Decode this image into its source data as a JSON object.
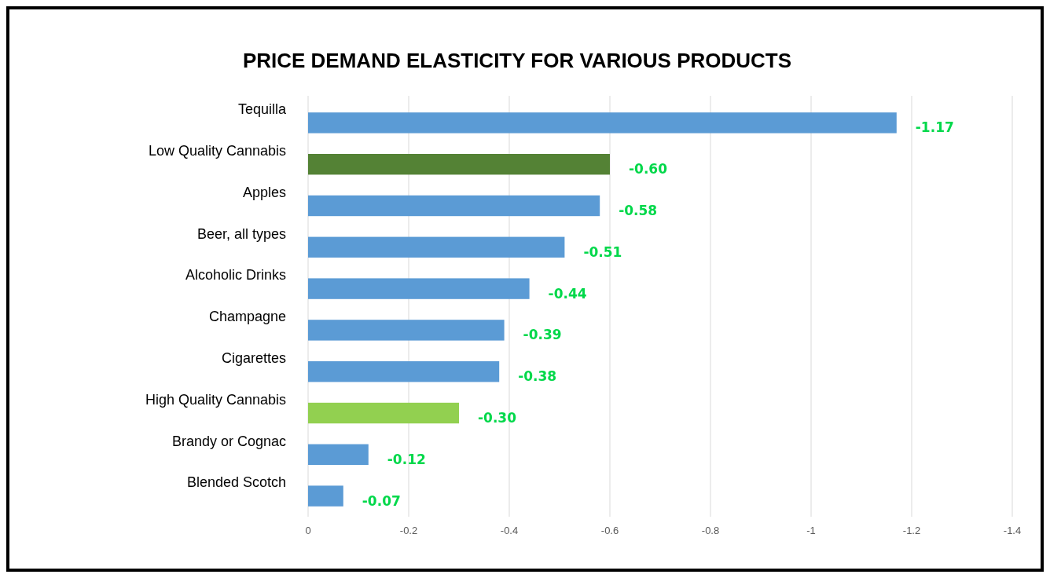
{
  "chart_data": {
    "type": "bar",
    "orientation": "horizontal",
    "title": "PRICE DEMAND ELASTICITY FOR VARIOUS PRODUCTS",
    "categories": [
      "Tequilla",
      "Low Quality Cannabis",
      "Apples",
      "Beer, all types",
      "Alcoholic Drinks",
      "Champagne",
      "Cigarettes",
      "High Quality Cannabis",
      "Brandy or Cognac",
      "Blended Scotch"
    ],
    "values": [
      -1.17,
      -0.6,
      -0.58,
      -0.51,
      -0.44,
      -0.39,
      -0.38,
      -0.3,
      -0.12,
      -0.07
    ],
    "colors": [
      "#5b9bd5",
      "#548235",
      "#5b9bd5",
      "#5b9bd5",
      "#5b9bd5",
      "#5b9bd5",
      "#5b9bd5",
      "#92d050",
      "#5b9bd5",
      "#5b9bd5"
    ],
    "value_labels": [
      "-1.17",
      "-0.60",
      "-0.58",
      "-0.51",
      "-0.44",
      "-0.39",
      "-0.38",
      "-0.30",
      "-0.12",
      "-0.07"
    ],
    "xlim": [
      0,
      -1.4
    ],
    "xticks": [
      0,
      -0.2,
      -0.4,
      -0.6,
      -0.8,
      -1,
      -1.2,
      -1.4
    ],
    "grid": "x"
  }
}
